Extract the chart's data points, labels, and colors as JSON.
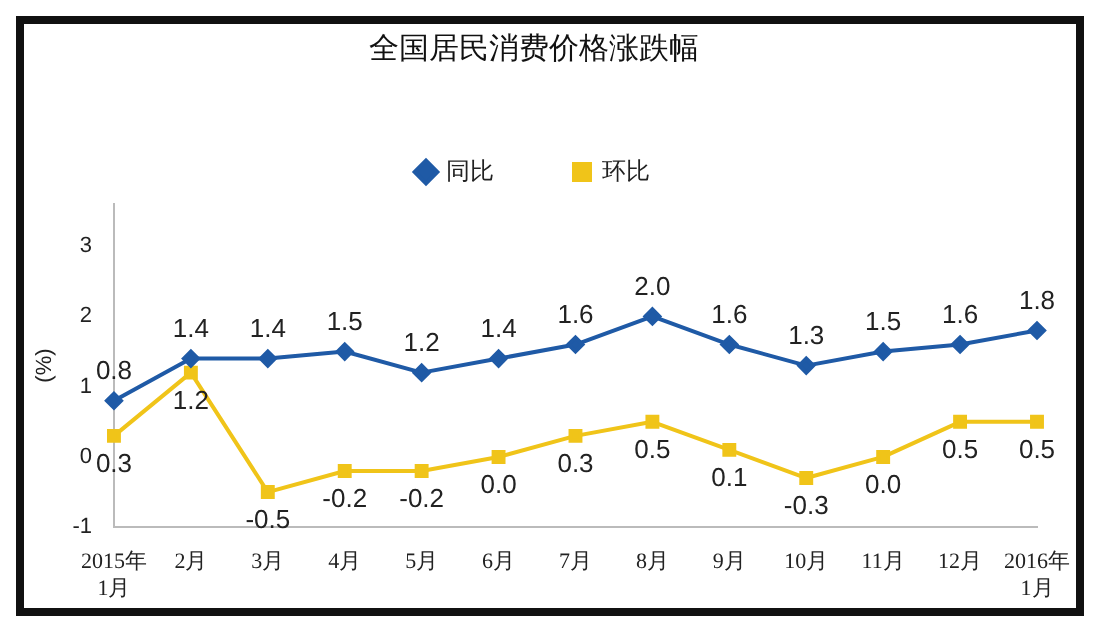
{
  "chart_data": {
    "type": "line",
    "title": "全国居民消费价格涨跌幅",
    "ylabel": "(%)",
    "categories": [
      "2015年\n1月",
      "2月",
      "3月",
      "4月",
      "5月",
      "6月",
      "7月",
      "8月",
      "9月",
      "10月",
      "11月",
      "12月",
      "2016年\n1月"
    ],
    "series": [
      {
        "name": "同比",
        "color": "#1f5aa6",
        "marker": "diamond",
        "values": [
          0.8,
          1.4,
          1.4,
          1.5,
          1.2,
          1.4,
          1.6,
          2.0,
          1.6,
          1.3,
          1.5,
          1.6,
          1.8
        ],
        "value_labels": [
          "0.8",
          "1.4",
          "1.4",
          "1.5",
          "1.2",
          "1.4",
          "1.6",
          "2.0",
          "1.6",
          "1.3",
          "1.5",
          "1.6",
          "1.8"
        ]
      },
      {
        "name": "环比",
        "color": "#f0c419",
        "marker": "square",
        "values": [
          0.3,
          1.2,
          -0.5,
          -0.2,
          -0.2,
          0.0,
          0.3,
          0.5,
          0.1,
          -0.3,
          0.0,
          0.5,
          0.5
        ],
        "value_labels": [
          "0.3",
          "1.2",
          "-0.5",
          "-0.2",
          "-0.2",
          "0.0",
          "0.3",
          "0.5",
          "0.1",
          "-0.3",
          "0.0",
          "0.5",
          "0.5"
        ]
      }
    ],
    "ylim": [
      -1,
      3.6
    ],
    "yticks": [
      -1,
      0,
      1,
      2,
      3
    ],
    "grid": false,
    "legend": "top"
  }
}
